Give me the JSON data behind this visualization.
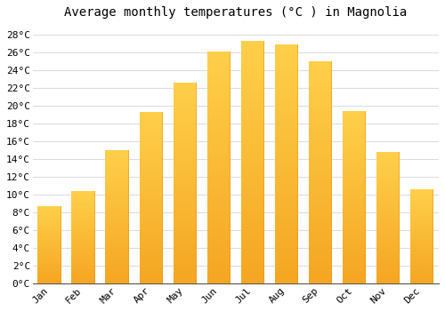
{
  "months": [
    "Jan",
    "Feb",
    "Mar",
    "Apr",
    "May",
    "Jun",
    "Jul",
    "Aug",
    "Sep",
    "Oct",
    "Nov",
    "Dec"
  ],
  "values": [
    8.7,
    10.4,
    15.0,
    19.3,
    22.6,
    26.1,
    27.3,
    26.9,
    25.0,
    19.4,
    14.8,
    10.6
  ],
  "bar_color_bottom": "#F5A623",
  "bar_color_top": "#FFD04A",
  "bar_edge_color": "#E8920A",
  "title": "Average monthly temperatures (°C ) in Magnolia",
  "ylim": [
    0,
    29
  ],
  "yticks": [
    0,
    2,
    4,
    6,
    8,
    10,
    12,
    14,
    16,
    18,
    20,
    22,
    24,
    26,
    28
  ],
  "ytick_labels": [
    "0°C",
    "2°C",
    "4°C",
    "6°C",
    "8°C",
    "10°C",
    "12°C",
    "14°C",
    "16°C",
    "18°C",
    "20°C",
    "22°C",
    "24°C",
    "26°C",
    "28°C"
  ],
  "background_color": "#FFFFFF",
  "grid_color": "#DDDDDD",
  "title_fontsize": 10,
  "tick_fontsize": 8,
  "font_family": "monospace",
  "bar_width": 0.7
}
